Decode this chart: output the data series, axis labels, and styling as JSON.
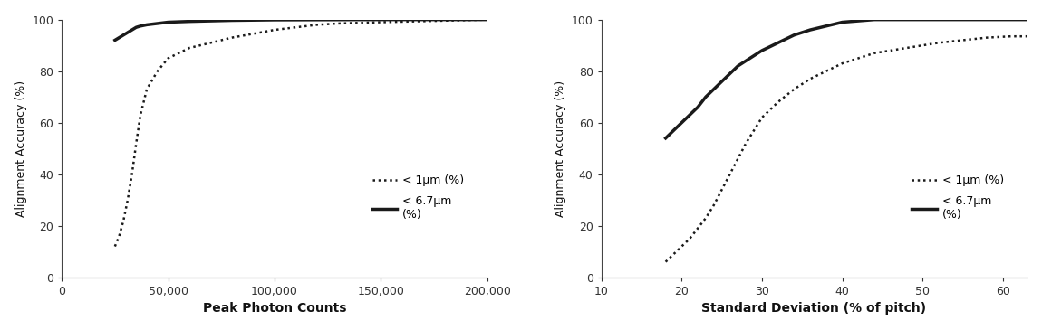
{
  "plot1": {
    "xlabel": "Peak Photon Counts",
    "ylabel": "Alignment Accuracy (%)",
    "xlim": [
      0,
      200000
    ],
    "ylim": [
      0,
      100
    ],
    "xticks": [
      0,
      50000,
      100000,
      150000,
      200000
    ],
    "xtick_labels": [
      "0",
      "50,000",
      "100,000",
      "150,000",
      "200,000"
    ],
    "yticks": [
      0,
      20,
      40,
      60,
      80,
      100
    ],
    "line1um_x": [
      25000,
      27000,
      29000,
      31000,
      33000,
      35000,
      37000,
      40000,
      45000,
      50000,
      60000,
      70000,
      80000,
      90000,
      100000,
      110000,
      120000,
      130000,
      150000,
      175000,
      200000
    ],
    "line1um_y": [
      12,
      16,
      22,
      30,
      40,
      52,
      63,
      73,
      80,
      85,
      89,
      91,
      93,
      94.5,
      96,
      97,
      98,
      98.5,
      99,
      99.5,
      100
    ],
    "line67um_x": [
      25000,
      27000,
      29000,
      31000,
      33000,
      35000,
      37000,
      40000,
      45000,
      50000,
      60000,
      70000,
      80000,
      90000,
      100000,
      120000,
      150000,
      175000,
      200000
    ],
    "line67um_y": [
      92,
      93,
      94,
      95,
      96,
      97,
      97.5,
      98,
      98.5,
      99,
      99.3,
      99.5,
      99.7,
      99.8,
      99.9,
      99.95,
      100,
      100,
      100
    ],
    "legend1_label": "< 1μm (%)",
    "legend2_label": "< 6.7μm\n(%)"
  },
  "plot2": {
    "xlabel": "Standard Deviation (% of pitch)",
    "ylabel": "Alignment Accuracy (%)",
    "xlim": [
      10,
      63
    ],
    "ylim": [
      0,
      100
    ],
    "xticks": [
      10,
      20,
      30,
      40,
      50,
      60
    ],
    "xtick_labels": [
      "10",
      "20",
      "30",
      "40",
      "50",
      "60"
    ],
    "yticks": [
      0,
      20,
      40,
      60,
      80,
      100
    ],
    "line1um_x": [
      18,
      19,
      20,
      21,
      22,
      23,
      24,
      25,
      26,
      27,
      28,
      29,
      30,
      32,
      34,
      36,
      38,
      40,
      42,
      44,
      46,
      48,
      50,
      52,
      55,
      58,
      61,
      63
    ],
    "line1um_y": [
      6,
      9,
      12,
      15,
      19,
      23,
      28,
      34,
      40,
      46,
      52,
      57,
      62,
      68,
      73,
      77,
      80,
      83,
      85,
      87,
      88,
      89,
      90,
      91,
      92,
      93,
      93.5,
      93.5
    ],
    "line67um_x": [
      18,
      19,
      20,
      21,
      22,
      23,
      24,
      25,
      26,
      27,
      28,
      30,
      32,
      34,
      36,
      38,
      40,
      42,
      44,
      46,
      48,
      50,
      52,
      55,
      58,
      61,
      63
    ],
    "line67um_y": [
      54,
      57,
      60,
      63,
      66,
      70,
      73,
      76,
      79,
      82,
      84,
      88,
      91,
      94,
      96,
      97.5,
      99,
      99.5,
      100,
      100,
      100,
      100,
      100,
      100,
      100,
      100,
      100
    ],
    "legend1_label": "< 1μm (%)",
    "legend2_label": "< 6.7μm\n(%)"
  },
  "line_color": "#1a1a1a",
  "bg_color": "#ffffff",
  "font_size": 9,
  "xlabel_fontsize": 10,
  "ylabel_fontsize": 9
}
